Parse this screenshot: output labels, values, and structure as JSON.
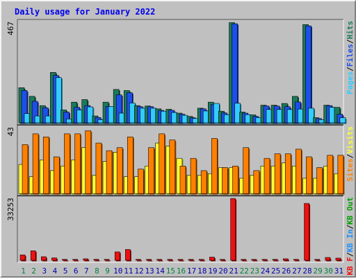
{
  "title": "Daily usage for January 2022",
  "colors": {
    "background": "#c0c0c0",
    "hits": "#1a7a5a",
    "files": "#1e4fe8",
    "pages": "#33ccff",
    "visits": "#ffff33",
    "sites": "#ff8000",
    "kbin": "#1e90ff",
    "kbout": "#00a000",
    "kbf": "#ee1111",
    "weekend_day": "#008040",
    "weekday_day": "#0000aa",
    "separator": "#000000"
  },
  "chart_data": {
    "type": "bar",
    "categories": [
      "1",
      "2",
      "3",
      "4",
      "5",
      "6",
      "7",
      "8",
      "9",
      "10",
      "11",
      "12",
      "13",
      "14",
      "15",
      "16",
      "17",
      "18",
      "19",
      "20",
      "21",
      "22",
      "23",
      "24",
      "25",
      "26",
      "27",
      "28",
      "29",
      "30",
      "31"
    ],
    "weekend_days": [
      "1",
      "2",
      "8",
      "9",
      "15",
      "16",
      "22",
      "23",
      "29",
      "30"
    ],
    "panels": [
      {
        "name": "hits-files-pages",
        "max_label": "467",
        "ylim": [
          0,
          467
        ],
        "legend": [
          {
            "text": "Pages",
            "color_key": "pages"
          },
          {
            "text": "Files",
            "color_key": "files"
          },
          {
            "text": "Hits",
            "color_key": "hits"
          }
        ],
        "series": [
          {
            "name": "Hits",
            "color_key": "hits",
            "values": [
              163,
              123,
              80,
              234,
              60,
              96,
              108,
              32,
              96,
              155,
              150,
              80,
              78,
              65,
              63,
              45,
              30,
              68,
              96,
              54,
              465,
              50,
              37,
              82,
              82,
              90,
              123,
              456,
              24,
              82,
              72
            ]
          },
          {
            "name": "Files",
            "color_key": "files",
            "values": [
              150,
              100,
              70,
              220,
              50,
              72,
              80,
              25,
              76,
              130,
              140,
              75,
              75,
              58,
              58,
              40,
              24,
              65,
              85,
              46,
              460,
              45,
              30,
              78,
              78,
              75,
              97,
              450,
              20,
              80,
              40
            ]
          },
          {
            "name": "Pages",
            "color_key": "pages",
            "values": [
              43,
              32,
              32,
              210,
              18,
              60,
              74,
              15,
              76,
              45,
              92,
              68,
              68,
              54,
              48,
              35,
              20,
              55,
              90,
              38,
              91,
              38,
              24,
              62,
              62,
              62,
              64,
              68,
              15,
              72,
              24
            ]
          }
        ]
      },
      {
        "name": "visits-sites",
        "max_label": "43",
        "ylim": [
          0,
          43
        ],
        "legend": [
          {
            "text": "Sites",
            "color_key": "sites"
          },
          {
            "text": "Visits",
            "color_key": "visits"
          }
        ],
        "series": [
          {
            "name": "Visits",
            "color_key": "visits",
            "values": [
              19,
              11,
              22,
              15,
              18,
              22,
              30,
              12,
              21,
              27,
              11,
              11,
              18,
              33,
              31,
              23,
              12,
              12,
              13,
              17,
              17,
              10,
              12,
              18,
              18,
              20,
              18,
              10,
              10,
              18,
              13
            ]
          },
          {
            "name": "Sites",
            "color_key": "sites",
            "values": [
              32,
              39,
              37,
              24,
              39,
              39,
              41,
              33,
              28,
              30,
              37,
              16,
              30,
              39,
              35,
              18,
              23,
              15,
              36,
              17,
              18,
              30,
              15,
              23,
              26,
              26,
              29,
              24,
              17,
              25,
              25
            ]
          }
        ]
      },
      {
        "name": "kb",
        "max_label": "33253",
        "ylim": [
          0,
          33253
        ],
        "legend": [
          {
            "text": "KB F",
            "color_key": "kbf"
          },
          {
            "text": "KB In",
            "color_key": "kbin"
          },
          {
            "text": "KB Out",
            "color_key": "kbout"
          }
        ],
        "series": [
          {
            "name": "KB F",
            "color_key": "kbf",
            "values": [
              2900,
              5100,
              1900,
              1300,
              480,
              480,
              780,
              500,
              480,
              4500,
              5800,
              480,
              480,
              480,
              480,
              480,
              480,
              480,
              1700,
              480,
              33253,
              480,
              480,
              480,
              480,
              780,
              480,
              30600,
              480,
              1500,
              1150
            ]
          }
        ]
      }
    ]
  }
}
